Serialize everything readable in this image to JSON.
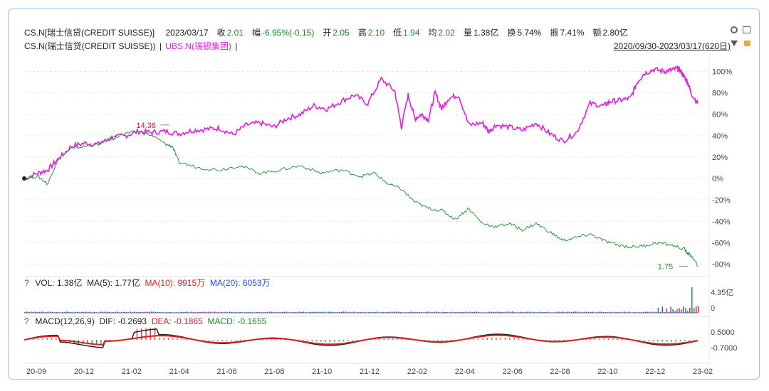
{
  "header": {
    "symbol": "CS.N[瑞士信贷(CREDIT SUISSE)]",
    "date": "2023/03/17",
    "close_label": "收",
    "close": "2.01",
    "chg_label": "幅",
    "chg": "-6.95%(-0.15)",
    "open_label": "开",
    "open": "2.05",
    "high_label": "高",
    "high": "2.10",
    "low_label": "低",
    "low": "1.94",
    "avg_label": "均",
    "avg": "2.02",
    "vol_label": "量",
    "vol": "1.38亿",
    "turn_label": "换",
    "turn": "5.74%",
    "amp_label": "振",
    "amp": "7.41%",
    "amt_label": "额",
    "amt": "2.80亿"
  },
  "compare": {
    "main": "CS.N(瑞士信贷(CREDIT SUISSE))",
    "sep1": "|",
    "other": "UBS.N(瑞银集团)",
    "sep2": "|",
    "range": "2020/09/30-2023/03/17(620日)"
  },
  "icons": {
    "settings": "gear-icon",
    "popout": "popout-icon",
    "dropdown": "triangle-down-icon",
    "lock": "lock-icon"
  },
  "volume_panel": {
    "help": "?",
    "vol": "VOL: 1.38亿",
    "ma5": "MA(5): 1.77亿",
    "ma10": "MA(10): 9915万",
    "ma20": "MA(20): 6053万",
    "axis": [
      "4.35亿",
      "0"
    ]
  },
  "macd_panel": {
    "help": "?",
    "macd_label": "MACD(12,26,9)",
    "dif": "DIF: -0.2693",
    "dea": "DEA: -0.1865",
    "macd": "MACD: -0.1655",
    "axis": [
      "0.5000",
      "-0.7000"
    ]
  },
  "chart_data": {
    "type": "line",
    "y_unit": "%",
    "yticks": [
      100,
      80,
      60,
      40,
      20,
      0,
      -20,
      -40,
      -60,
      -80
    ],
    "ylim": [
      -85,
      105
    ],
    "x_ticks": [
      "20-09",
      "20-12",
      "21-02",
      "21-04",
      "21-06",
      "21-08",
      "21-10",
      "21-12",
      "22-02",
      "22-04",
      "22-06",
      "22-08",
      "22-10",
      "22-12",
      "23-02"
    ],
    "annotations": [
      {
        "text": "14.38",
        "x": 0.215,
        "y": 50
      },
      {
        "text": "1.75",
        "x": 0.985,
        "y": -82
      }
    ],
    "series": [
      {
        "name": "UBS.N(瑞银集团)",
        "color": "#e020e0",
        "x": [
          0,
          0.02,
          0.035,
          0.05,
          0.07,
          0.09,
          0.11,
          0.13,
          0.15,
          0.17,
          0.19,
          0.21,
          0.23,
          0.25,
          0.27,
          0.29,
          0.31,
          0.33,
          0.35,
          0.37,
          0.39,
          0.41,
          0.43,
          0.45,
          0.47,
          0.49,
          0.51,
          0.53,
          0.55,
          0.56,
          0.57,
          0.58,
          0.59,
          0.6,
          0.61,
          0.62,
          0.63,
          0.645,
          0.66,
          0.68,
          0.69,
          0.7,
          0.72,
          0.74,
          0.76,
          0.78,
          0.8,
          0.82,
          0.84,
          0.86,
          0.87,
          0.885,
          0.9,
          0.91,
          0.92,
          0.935,
          0.95,
          0.96,
          0.97,
          0.975,
          0.98,
          0.985,
          0.99,
          1.0
        ],
        "y": [
          0,
          5,
          8,
          18,
          30,
          33,
          32,
          38,
          40,
          44,
          43,
          44,
          42,
          45,
          46,
          47,
          41,
          50,
          52,
          48,
          56,
          60,
          68,
          65,
          72,
          78,
          70,
          93,
          82,
          48,
          78,
          56,
          60,
          55,
          80,
          65,
          75,
          78,
          50,
          52,
          44,
          50,
          48,
          45,
          52,
          42,
          35,
          43,
          70,
          68,
          72,
          73,
          75,
          90,
          98,
          102,
          100,
          101,
          103,
          100,
          95,
          90,
          80,
          70
        ]
      },
      {
        "name": "CS.N(瑞士信贷(CREDIT SUISSE))",
        "color": "#2a9a3a",
        "x": [
          0,
          0.02,
          0.035,
          0.05,
          0.07,
          0.09,
          0.11,
          0.13,
          0.15,
          0.17,
          0.19,
          0.21,
          0.22,
          0.23,
          0.26,
          0.29,
          0.32,
          0.35,
          0.38,
          0.41,
          0.44,
          0.47,
          0.5,
          0.52,
          0.54,
          0.56,
          0.58,
          0.6,
          0.62,
          0.64,
          0.66,
          0.68,
          0.7,
          0.72,
          0.74,
          0.76,
          0.78,
          0.8,
          0.82,
          0.84,
          0.86,
          0.88,
          0.9,
          0.92,
          0.94,
          0.96,
          0.98,
          0.985,
          0.99,
          1.0
        ],
        "y": [
          0,
          2,
          -5,
          18,
          28,
          30,
          32,
          38,
          42,
          44,
          40,
          32,
          30,
          15,
          10,
          8,
          12,
          5,
          8,
          12,
          5,
          8,
          2,
          5,
          -5,
          -10,
          -22,
          -28,
          -30,
          -38,
          -28,
          -42,
          -45,
          -42,
          -48,
          -42,
          -50,
          -58,
          -55,
          -52,
          -58,
          -62,
          -64,
          -63,
          -60,
          -62,
          -66,
          -70,
          -72,
          -82
        ]
      }
    ]
  }
}
